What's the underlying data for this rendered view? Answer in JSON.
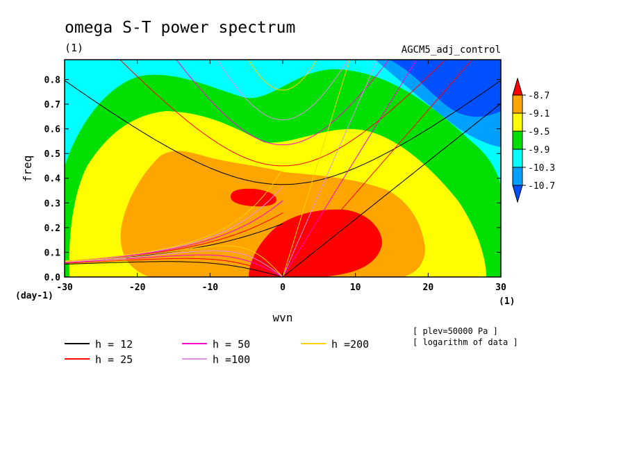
{
  "chart_data": {
    "type": "heatmap",
    "title": "omega S-T power spectrum",
    "title_units": "(1)",
    "run_name": "AGCM5_adj_control",
    "xlabel": "wvn",
    "x_units": "(1)",
    "ylabel": "freq",
    "y_units": "(day-1)",
    "xlim": [
      -30,
      30
    ],
    "ylim": [
      0,
      0.88
    ],
    "x_ticks": [
      "-30",
      "-20",
      "-10",
      "0",
      "10",
      "20",
      "30"
    ],
    "x_tick_values": [
      -30,
      -20,
      -10,
      0,
      10,
      20,
      30
    ],
    "y_ticks": [
      "0.0",
      "0.1",
      "0.2",
      "0.3",
      "0.4",
      "0.5",
      "0.6",
      "0.7",
      "0.8"
    ],
    "y_tick_values": [
      0,
      0.1,
      0.2,
      0.3,
      0.4,
      0.5,
      0.6,
      0.7,
      0.8
    ],
    "colorbar": {
      "labels": [
        "-8.7",
        "-9.1",
        "-9.5",
        "-9.9",
        "-10.3",
        "-10.7"
      ],
      "levels": [
        -8.7,
        -9.1,
        -9.5,
        -9.9,
        -10.3,
        -10.7
      ],
      "colors": [
        "#ff0000",
        "#ffa500",
        "#ffff00",
        "#00e000",
        "#00ffff",
        "#00a0ff",
        "#0050ff"
      ]
    },
    "fill_colors": {
      "lt_-10.7": "#0050ff",
      "-10.7_-10.3": "#00a0ff",
      "-10.3_-9.9": "#00ffff",
      "-9.9_-9.5": "#00e000",
      "-9.5_-9.1": "#ffff00",
      "-9.1_-8.7": "#ffa500",
      "gt_-8.7": "#ff0000"
    },
    "dispersion_curves": [
      {
        "label": "h = 12",
        "h": 12,
        "color": "#000000"
      },
      {
        "label": "h = 25",
        "h": 25,
        "color": "#ff0000"
      },
      {
        "label": "h = 50",
        "h": 50,
        "color": "#ff00cc"
      },
      {
        "label": "h =100",
        "h": 100,
        "color": "#e090e8"
      },
      {
        "label": "h =200",
        "h": 200,
        "color": "#ffd000"
      }
    ],
    "annotations": [
      "[ plev=50000 Pa ]",
      "[ logarithm of data ]"
    ]
  }
}
